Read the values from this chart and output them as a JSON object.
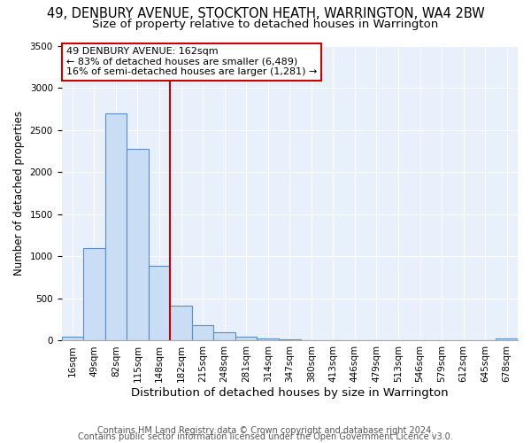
{
  "title": "49, DENBURY AVENUE, STOCKTON HEATH, WARRINGTON, WA4 2BW",
  "subtitle": "Size of property relative to detached houses in Warrington",
  "xlabel": "Distribution of detached houses by size in Warrington",
  "ylabel": "Number of detached properties",
  "bar_labels": [
    "16sqm",
    "49sqm",
    "82sqm",
    "115sqm",
    "148sqm",
    "182sqm",
    "215sqm",
    "248sqm",
    "281sqm",
    "314sqm",
    "347sqm",
    "380sqm",
    "413sqm",
    "446sqm",
    "479sqm",
    "513sqm",
    "546sqm",
    "579sqm",
    "612sqm",
    "645sqm",
    "678sqm"
  ],
  "bar_values": [
    50,
    1100,
    2700,
    2280,
    890,
    420,
    185,
    100,
    50,
    30,
    20,
    10,
    5,
    3,
    2,
    1,
    1,
    0,
    0,
    0,
    30
  ],
  "bar_color": "#c9ddf5",
  "bar_edge_color": "#5b8ec4",
  "vline_color": "#cc0000",
  "annotation_text": "49 DENBURY AVENUE: 162sqm\n← 83% of detached houses are smaller (6,489)\n16% of semi-detached houses are larger (1,281) →",
  "annotation_box_color": "#ffffff",
  "annotation_box_edge_color": "#cc0000",
  "ylim": [
    0,
    3500
  ],
  "yticks": [
    0,
    500,
    1000,
    1500,
    2000,
    2500,
    3000,
    3500
  ],
  "footer1": "Contains HM Land Registry data © Crown copyright and database right 2024.",
  "footer2": "Contains public sector information licensed under the Open Government Licence v3.0.",
  "background_color": "#ffffff",
  "plot_bg_color": "#e8f0fb",
  "grid_color": "#ffffff",
  "title_fontsize": 10.5,
  "subtitle_fontsize": 9.5,
  "xlabel_fontsize": 9.5,
  "ylabel_fontsize": 8.5,
  "tick_fontsize": 7.5,
  "annotation_fontsize": 8,
  "footer_fontsize": 7
}
